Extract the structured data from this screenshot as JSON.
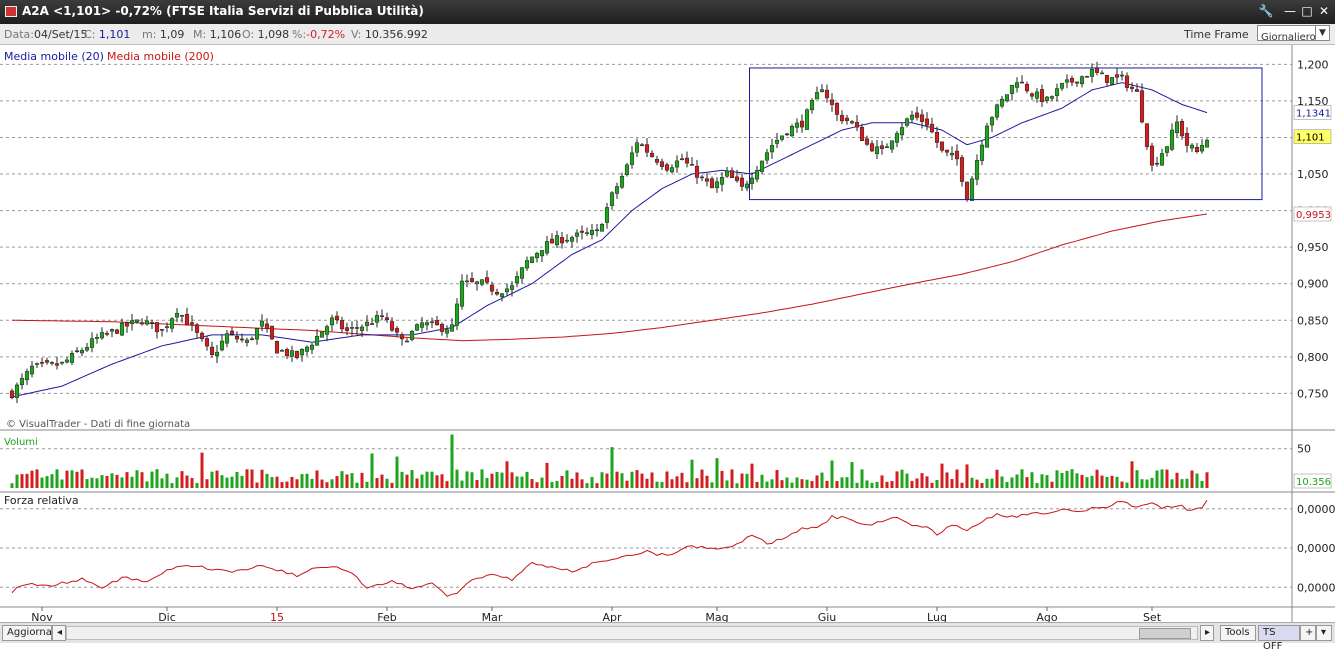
{
  "window": {
    "title": "A2A <1,101> -0,72%  (FTSE Italia Servizi di Pubblica Utilità)",
    "controls": [
      "🔧",
      "—",
      "□",
      "✕"
    ]
  },
  "infobar": {
    "date_label": "Data:",
    "date_value": "04/Set/15",
    "close_label": "C:",
    "close_value": "1,101",
    "min_label": "m:",
    "min_value": "1,09",
    "max_label": "M:",
    "max_value": "1,106",
    "open_label": "O:",
    "open_value": "1,098",
    "pct_label": "%:",
    "pct_value": "-0,72%",
    "vol_label": "V:",
    "vol_value": "10.356.992",
    "timeframe_label": "Time Frame",
    "timeframe_value": "Giornaliero"
  },
  "colors": {
    "up": "#1ea51e",
    "down": "#d21e1e",
    "ma20": "#1a1aa0",
    "ma200": "#c81414",
    "rs": "#c81414",
    "grid": "#9a9a9a",
    "last_price_bg": "#ffff66"
  },
  "chart_data": [
    {
      "type": "candlestick",
      "legend": [
        "Media mobile (20)",
        "Media mobile (200)"
      ],
      "y_ticks": [
        "1,200",
        "1,150",
        "1,100",
        "1,050",
        "1,000",
        "0,950",
        "0,900",
        "0,850",
        "0,800",
        "0,750"
      ],
      "ylim": [
        0.73,
        1.21
      ],
      "x_labels": [
        "Nov",
        "Dic",
        "15",
        "Feb",
        "Mar",
        "Apr",
        "Mag",
        "Giu",
        "Lug",
        "Ago",
        "Set"
      ],
      "x_label_days": [
        6,
        31,
        53,
        75,
        96,
        120,
        141,
        163,
        185,
        207,
        228
      ],
      "last_price": "1,101",
      "ma20_last": "1,1341",
      "ma200_last": "0,9953",
      "watermark": "© VisualTrader - Dati di fine giornata",
      "rectangle": {
        "day_start": 147.5,
        "day_end": 250,
        "price_top": 1.195,
        "price_bottom": 1.015
      },
      "close_anchors": [
        [
          0,
          0.75
        ],
        [
          4,
          0.785
        ],
        [
          10,
          0.79
        ],
        [
          17,
          0.825
        ],
        [
          22,
          0.84
        ],
        [
          26,
          0.85
        ],
        [
          30,
          0.835
        ],
        [
          33,
          0.865
        ],
        [
          36,
          0.84
        ],
        [
          40,
          0.8
        ],
        [
          43,
          0.83
        ],
        [
          47,
          0.82
        ],
        [
          50,
          0.845
        ],
        [
          53,
          0.81
        ],
        [
          57,
          0.8
        ],
        [
          60,
          0.82
        ],
        [
          64,
          0.85
        ],
        [
          67,
          0.835
        ],
        [
          71,
          0.845
        ],
        [
          74,
          0.855
        ],
        [
          78,
          0.82
        ],
        [
          82,
          0.845
        ],
        [
          86,
          0.84
        ],
        [
          88,
          0.84
        ],
        [
          90,
          0.9
        ],
        [
          94,
          0.9
        ],
        [
          97,
          0.89
        ],
        [
          100,
          0.895
        ],
        [
          103,
          0.93
        ],
        [
          106,
          0.95
        ],
        [
          109,
          0.96
        ],
        [
          113,
          0.965
        ],
        [
          117,
          0.97
        ],
        [
          120,
          1.02
        ],
        [
          123,
          1.06
        ],
        [
          125,
          1.095
        ],
        [
          128,
          1.075
        ],
        [
          131,
          1.06
        ],
        [
          134,
          1.07
        ],
        [
          137,
          1.05
        ],
        [
          140,
          1.03
        ],
        [
          143,
          1.05
        ],
        [
          146,
          1.03
        ],
        [
          149,
          1.06
        ],
        [
          152,
          1.09
        ],
        [
          155,
          1.11
        ],
        [
          158,
          1.12
        ],
        [
          162,
          1.17
        ],
        [
          165,
          1.13
        ],
        [
          168,
          1.12
        ],
        [
          171,
          1.09
        ],
        [
          174,
          1.08
        ],
        [
          177,
          1.11
        ],
        [
          180,
          1.13
        ],
        [
          183,
          1.12
        ],
        [
          186,
          1.08
        ],
        [
          189,
          1.07
        ],
        [
          191,
          1.02
        ],
        [
          193,
          1.07
        ],
        [
          195,
          1.12
        ],
        [
          198,
          1.15
        ],
        [
          201,
          1.18
        ],
        [
          204,
          1.16
        ],
        [
          207,
          1.15
        ],
        [
          210,
          1.17
        ],
        [
          213,
          1.18
        ],
        [
          216,
          1.19
        ],
        [
          219,
          1.18
        ],
        [
          222,
          1.18
        ],
        [
          225,
          1.16
        ],
        [
          228,
          1.06
        ],
        [
          231,
          1.09
        ],
        [
          233,
          1.12
        ],
        [
          235,
          1.09
        ],
        [
          237,
          1.08
        ],
        [
          239,
          1.101
        ]
      ],
      "ma20_anchors": [
        [
          0,
          0.745
        ],
        [
          10,
          0.76
        ],
        [
          20,
          0.79
        ],
        [
          30,
          0.815
        ],
        [
          40,
          0.83
        ],
        [
          50,
          0.83
        ],
        [
          60,
          0.82
        ],
        [
          70,
          0.83
        ],
        [
          80,
          0.83
        ],
        [
          88,
          0.84
        ],
        [
          95,
          0.87
        ],
        [
          104,
          0.9
        ],
        [
          112,
          0.94
        ],
        [
          118,
          0.96
        ],
        [
          124,
          1.0
        ],
        [
          130,
          1.03
        ],
        [
          136,
          1.05
        ],
        [
          142,
          1.055
        ],
        [
          148,
          1.05
        ],
        [
          154,
          1.07
        ],
        [
          160,
          1.09
        ],
        [
          166,
          1.11
        ],
        [
          172,
          1.12
        ],
        [
          180,
          1.12
        ],
        [
          186,
          1.11
        ],
        [
          191,
          1.09
        ],
        [
          196,
          1.1
        ],
        [
          202,
          1.12
        ],
        [
          210,
          1.14
        ],
        [
          216,
          1.165
        ],
        [
          222,
          1.175
        ],
        [
          228,
          1.165
        ],
        [
          234,
          1.145
        ],
        [
          239,
          1.134
        ]
      ],
      "ma200_anchors": [
        [
          0,
          0.85
        ],
        [
          20,
          0.848
        ],
        [
          40,
          0.842
        ],
        [
          60,
          0.836
        ],
        [
          80,
          0.826
        ],
        [
          90,
          0.822
        ],
        [
          100,
          0.824
        ],
        [
          110,
          0.827
        ],
        [
          120,
          0.832
        ],
        [
          130,
          0.84
        ],
        [
          140,
          0.85
        ],
        [
          150,
          0.86
        ],
        [
          160,
          0.872
        ],
        [
          170,
          0.886
        ],
        [
          180,
          0.9
        ],
        [
          190,
          0.913
        ],
        [
          200,
          0.93
        ],
        [
          210,
          0.953
        ],
        [
          220,
          0.972
        ],
        [
          230,
          0.986
        ],
        [
          239,
          0.9953
        ]
      ]
    },
    {
      "type": "bar",
      "label": "Volumi",
      "y_ticks": [
        "50"
      ],
      "last_value": "10.356",
      "ymax": 70,
      "peaks": [
        [
          88,
          68
        ],
        [
          120,
          52
        ],
        [
          38,
          45
        ],
        [
          72,
          44
        ],
        [
          77,
          40
        ],
        [
          141,
          38
        ],
        [
          136,
          36
        ],
        [
          164,
          35
        ],
        [
          168,
          33
        ],
        [
          99,
          34
        ],
        [
          107,
          32
        ],
        [
          148,
          31
        ],
        [
          186,
          31
        ],
        [
          191,
          30
        ],
        [
          224,
          34
        ],
        [
          239,
          20
        ]
      ]
    },
    {
      "type": "line",
      "label": "Forza relativa",
      "y_ticks": [
        "0,0000",
        "0,0000",
        "0,0000"
      ],
      "tick_values": [
        2,
        1,
        0
      ],
      "ylim": [
        -0.4,
        2.3
      ],
      "anchors": [
        [
          0,
          -0.1
        ],
        [
          3,
          0.1
        ],
        [
          8,
          0.05
        ],
        [
          14,
          0.2
        ],
        [
          18,
          0.0
        ],
        [
          22,
          0.25
        ],
        [
          27,
          0.15
        ],
        [
          31,
          0.45
        ],
        [
          35,
          0.55
        ],
        [
          39,
          0.5
        ],
        [
          43,
          0.4
        ],
        [
          47,
          0.45
        ],
        [
          50,
          0.55
        ],
        [
          53,
          0.45
        ],
        [
          57,
          0.3
        ],
        [
          61,
          0.5
        ],
        [
          64,
          0.55
        ],
        [
          67,
          0.45
        ],
        [
          71,
          0.0
        ],
        [
          76,
          0.15
        ],
        [
          80,
          -0.05
        ],
        [
          84,
          0.1
        ],
        [
          87,
          -0.25
        ],
        [
          89,
          -0.15
        ],
        [
          92,
          0.2
        ],
        [
          96,
          0.3
        ],
        [
          100,
          0.2
        ],
        [
          104,
          0.6
        ],
        [
          108,
          0.5
        ],
        [
          112,
          0.4
        ],
        [
          116,
          0.6
        ],
        [
          120,
          0.7
        ],
        [
          124,
          0.8
        ],
        [
          127,
          0.9
        ],
        [
          131,
          0.8
        ],
        [
          134,
          1.0
        ],
        [
          138,
          1.05
        ],
        [
          141,
          0.95
        ],
        [
          145,
          1.1
        ],
        [
          148,
          1.35
        ],
        [
          151,
          1.1
        ],
        [
          155,
          1.3
        ],
        [
          158,
          1.5
        ],
        [
          161,
          1.5
        ],
        [
          164,
          1.8
        ],
        [
          167,
          1.75
        ],
        [
          170,
          1.6
        ],
        [
          174,
          1.65
        ],
        [
          177,
          1.8
        ],
        [
          180,
          1.6
        ],
        [
          183,
          1.55
        ],
        [
          185,
          1.35
        ],
        [
          188,
          1.6
        ],
        [
          191,
          1.45
        ],
        [
          194,
          1.7
        ],
        [
          197,
          1.85
        ],
        [
          201,
          1.8
        ],
        [
          204,
          1.9
        ],
        [
          207,
          1.85
        ],
        [
          210,
          1.95
        ],
        [
          213,
          1.95
        ],
        [
          216,
          2.0
        ],
        [
          219,
          2.05
        ],
        [
          222,
          2.2
        ],
        [
          225,
          2.05
        ],
        [
          228,
          2.15
        ],
        [
          230,
          2.0
        ],
        [
          233,
          2.1
        ],
        [
          236,
          1.95
        ],
        [
          238,
          2.0
        ],
        [
          239,
          2.2
        ]
      ]
    }
  ],
  "bottombar": {
    "update_button": "Aggiorna",
    "tools_button": "Tools",
    "ts_button": "TS OFF",
    "plus_button": "+",
    "menu_button": "▾"
  }
}
